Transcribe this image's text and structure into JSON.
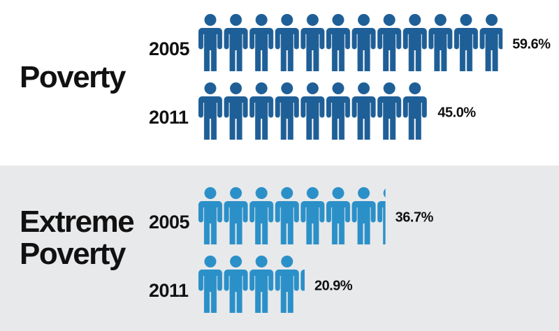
{
  "chart_data": [
    {
      "type": "pictograph",
      "title": "Poverty",
      "categories": [
        "2005",
        "2011"
      ],
      "values": [
        59.6,
        45.0
      ],
      "value_labels": [
        "59.6%",
        "45.0%"
      ],
      "color": "#1f5f97"
    },
    {
      "type": "pictograph",
      "title": "Extreme Poverty",
      "categories": [
        "2005",
        "2011"
      ],
      "values": [
        36.7,
        20.9
      ],
      "value_labels": [
        "36.7%",
        "20.9%"
      ],
      "color": "#2b90c8"
    }
  ]
}
